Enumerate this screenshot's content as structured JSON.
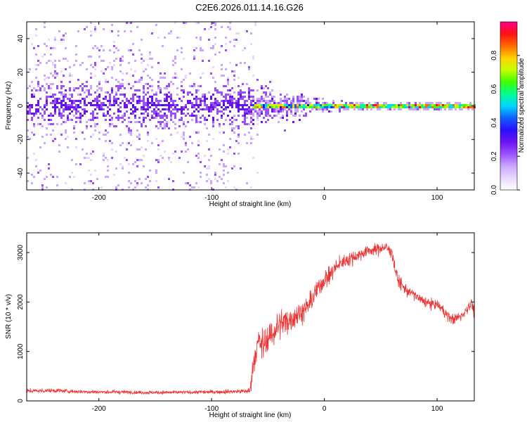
{
  "figure_title": "C2E6.2026.011.14.16.G26",
  "colors": {
    "snr_line": "#ee3333",
    "axis": "#000000",
    "spectrum_colormap": [
      "#ffffff",
      "#e8d8ff",
      "#c9a6ff",
      "#9b50ff",
      "#6a14f0",
      "#2a10ff",
      "#1060ff",
      "#00d8ff",
      "#00ff90",
      "#40ff00",
      "#c8ff00",
      "#ffd000",
      "#ff6a00",
      "#ff1010",
      "#ff008a"
    ]
  },
  "chart_data": [
    {
      "type": "heatmap",
      "xlabel": "Height of straight line (km)",
      "ylabel": "Frequency (Hz)",
      "xlim": [
        -264,
        133
      ],
      "ylim": [
        -50,
        50
      ],
      "xticks": [
        -200,
        -100,
        0,
        100
      ],
      "xtick_labels": [
        "-200",
        "-100",
        "0",
        "100"
      ],
      "yticks": [
        -40,
        -20,
        0,
        20,
        40
      ],
      "ytick_labels": [
        "-40",
        "-20",
        "0",
        "20",
        "40"
      ],
      "grid": false,
      "noise_region_x": [
        -264,
        -65
      ],
      "transition_region_x": [
        -65,
        15
      ],
      "signal_line_frequency": 0,
      "colorbar": {
        "label": "Normalized spectral amplitude",
        "range": [
          0,
          1
        ],
        "ticks": [
          0.0,
          0.2,
          0.4,
          0.6,
          0.8
        ],
        "tick_labels": [
          "0.0",
          "0.2",
          "0.4",
          "0.6",
          "0.8"
        ]
      }
    },
    {
      "type": "line",
      "xlabel": "Height of straight line (km)",
      "ylabel": "SNR (10 * v/v)",
      "xlim": [
        -264,
        133
      ],
      "ylim": [
        0,
        3400
      ],
      "xticks": [
        -200,
        -100,
        0,
        100
      ],
      "xtick_labels": [
        "-200",
        "-100",
        "0",
        "100"
      ],
      "yticks": [
        0,
        1000,
        2000,
        3000
      ],
      "ytick_labels": [
        "0",
        "1000",
        "2000",
        "3000"
      ],
      "grid": false,
      "series": [
        {
          "x": [
            -264,
            -240,
            -220,
            -200,
            -180,
            -160,
            -140,
            -120,
            -100,
            -80,
            -66,
            -65,
            -62,
            -58,
            -55,
            -50,
            -45,
            -40,
            -35,
            -30,
            -25,
            -20,
            -15,
            -10,
            -5,
            0,
            5,
            10,
            15,
            20,
            25,
            30,
            35,
            40,
            45,
            50,
            55,
            60,
            62,
            65,
            70,
            75,
            80,
            85,
            90,
            95,
            100,
            105,
            110,
            115,
            120,
            125,
            130,
            133
          ],
          "y": [
            200,
            210,
            190,
            180,
            180,
            170,
            170,
            175,
            180,
            190,
            200,
            400,
            900,
            1200,
            1100,
            1250,
            1400,
            1550,
            1600,
            1650,
            1750,
            1800,
            1900,
            2100,
            2300,
            2450,
            2550,
            2700,
            2800,
            2850,
            2900,
            2950,
            3000,
            3050,
            3050,
            3100,
            3100,
            3000,
            2750,
            2450,
            2300,
            2200,
            2150,
            2050,
            2000,
            1950,
            1950,
            1850,
            1700,
            1650,
            1700,
            1800,
            2000,
            1800
          ],
          "spread": [
            60,
            60,
            55,
            55,
            50,
            50,
            50,
            50,
            55,
            60,
            80,
            250,
            400,
            450,
            450,
            450,
            450,
            400,
            400,
            350,
            350,
            300,
            300,
            300,
            300,
            250,
            250,
            220,
            200,
            200,
            200,
            180,
            180,
            160,
            160,
            160,
            160,
            180,
            200,
            200,
            180,
            160,
            150,
            150,
            140,
            140,
            140,
            140,
            150,
            150,
            150,
            160,
            180,
            200
          ]
        }
      ]
    }
  ]
}
